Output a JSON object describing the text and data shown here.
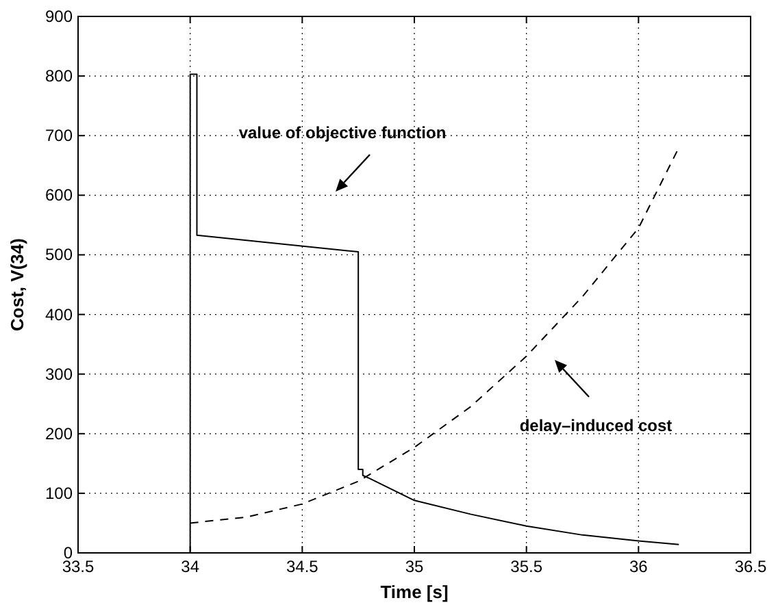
{
  "chart_data": {
    "type": "line",
    "xlabel": "Time [s]",
    "ylabel": "Cost, V(34)",
    "xlim": [
      33.5,
      36.5
    ],
    "xticks": [
      33.5,
      34,
      34.5,
      35,
      35.5,
      36,
      36.5
    ],
    "ylim": [
      0,
      900
    ],
    "yticks": [
      0,
      100,
      200,
      300,
      400,
      500,
      600,
      700,
      800,
      900
    ],
    "grid": true,
    "series": [
      {
        "color": "#000000",
        "line_style": "solid",
        "x": [
          34,
          34,
          34.03,
          34.03,
          34.75,
          34.75,
          34.77,
          34.77,
          34.8,
          35,
          35.25,
          35.5,
          35.75,
          36,
          36.18
        ],
        "values": [
          0,
          803,
          803,
          533,
          505,
          140,
          140,
          130,
          125,
          88,
          65,
          45,
          30,
          20,
          14
        ]
      },
      {
        "color": "#000000",
        "line_style": "dashed",
        "x": [
          34,
          34.25,
          34.5,
          34.75,
          35,
          35.25,
          35.5,
          35.75,
          36,
          36.18
        ],
        "values": [
          50,
          60,
          82,
          120,
          177,
          245,
          330,
          430,
          545,
          680
        ]
      }
    ],
    "annotations": [
      "value of objective function",
      "delay–induced cost"
    ]
  }
}
